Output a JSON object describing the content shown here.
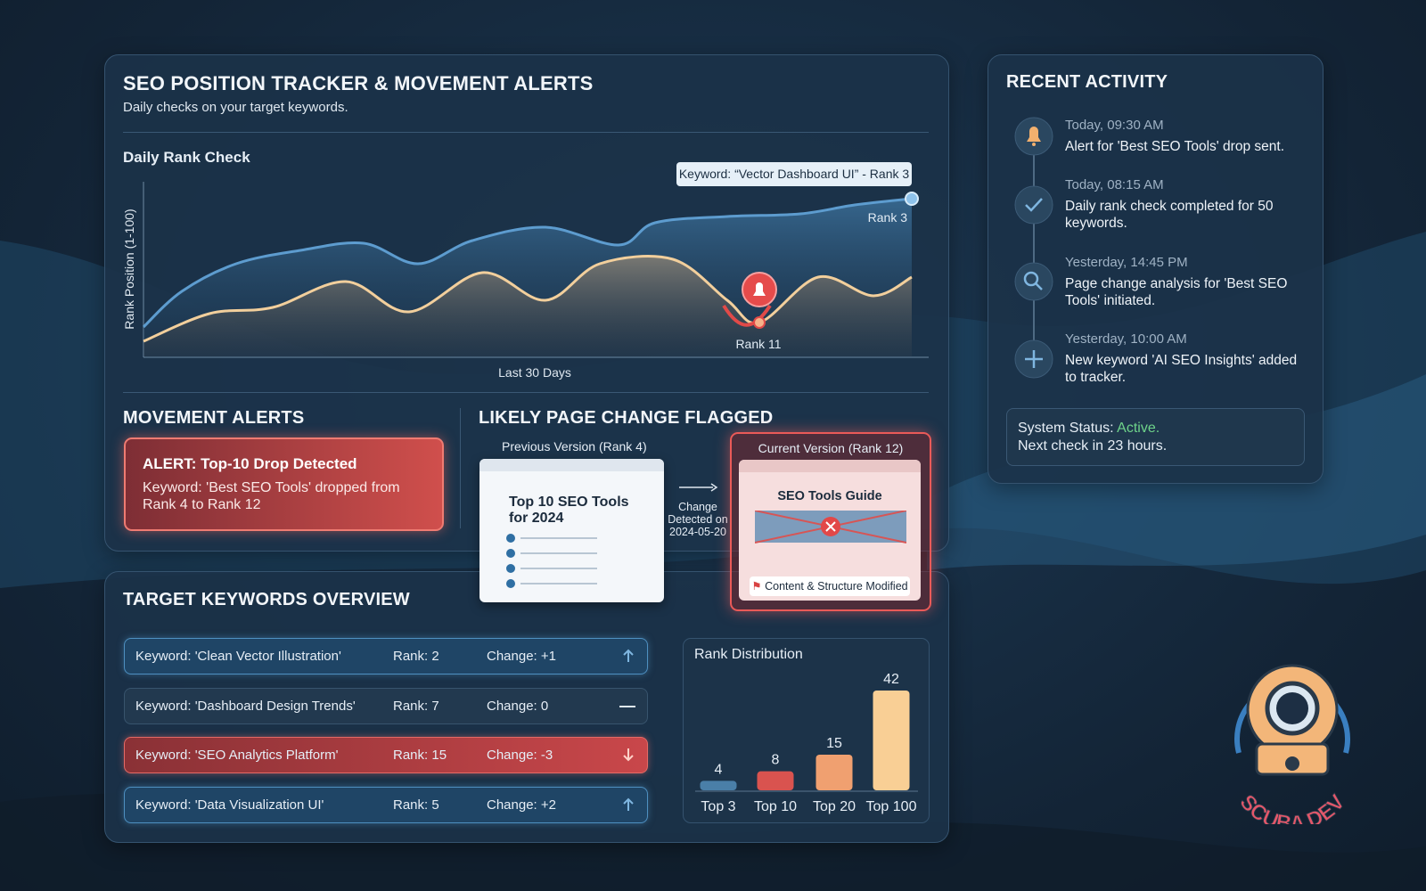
{
  "main": {
    "title": "SEO POSITION TRACKER & MOVEMENT ALERTS",
    "subtitle": "Daily checks on your target keywords."
  },
  "rank_chart": {
    "title": "Daily Rank Check",
    "y_label": "Rank Position (1-100)",
    "x_label": "Last 30 Days",
    "tooltip": "Keyword: “Vector Dashboard UI” - Rank 3",
    "end_label": "Rank 3",
    "low_label": "Rank 11"
  },
  "alerts": {
    "title": "MOVEMENT ALERTS",
    "alert_title": "ALERT: Top-10 Drop Detected",
    "alert_text": "Keyword: 'Best SEO Tools' dropped from Rank 4 to Rank 12"
  },
  "page_change": {
    "title": "LIKELY PAGE CHANGE FLAGGED",
    "previous_label": "Previous Version (Rank 4)",
    "previous_heading": "Top 10 SEO Tools for 2024",
    "change_note": "Change Detected on 2024-05-20",
    "current_label": "Current Version (Rank 12)",
    "current_heading": "SEO Tools Guide",
    "current_flag": "Content & Structure Modified"
  },
  "keywords": {
    "title": "TARGET KEYWORDS OVERVIEW",
    "rows": [
      [
        "Keyword: 'Clean Vector Illustration'",
        "Rank: 2",
        "Change: +1"
      ],
      [
        "Keyword: 'Dashboard Design Trends'",
        "Rank: 7",
        "Change: 0"
      ],
      [
        "Keyword: 'SEO Analytics Platform'",
        "Rank: 15",
        "Change: -3"
      ],
      [
        "Keyword: 'Data Visualization UI'",
        "Rank: 5",
        "Change: +2"
      ]
    ]
  },
  "chart_data": {
    "type": "bar",
    "title": "Rank Distribution",
    "categories": [
      "Top 3",
      "Top 10",
      "Top 20",
      "Top 100"
    ],
    "values": [
      4,
      8,
      15,
      42
    ],
    "colors": [
      "#4a7fa8",
      "#d9534f",
      "#f0a070",
      "#f9cf95"
    ]
  },
  "activity": {
    "title": "RECENT ACTIVITY",
    "items": [
      {
        "time": "Today, 09:30 AM",
        "text": "Alert for 'Best SEO Tools' drop sent."
      },
      {
        "time": "Today, 08:15 AM",
        "text": "Daily rank check completed for 50 keywords."
      },
      {
        "time": "Yesterday, 14:45 PM",
        "text": "Page change analysis for 'Best SEO Tools' initiated."
      },
      {
        "time": "Yesterday, 10:00 AM",
        "text": "New keyword 'AI SEO Insights' added to tracker."
      }
    ],
    "status_label": "System Status:",
    "status_value": "Active.",
    "next_check": "Next check in 23 hours."
  },
  "logo": "SCUBA DEV"
}
